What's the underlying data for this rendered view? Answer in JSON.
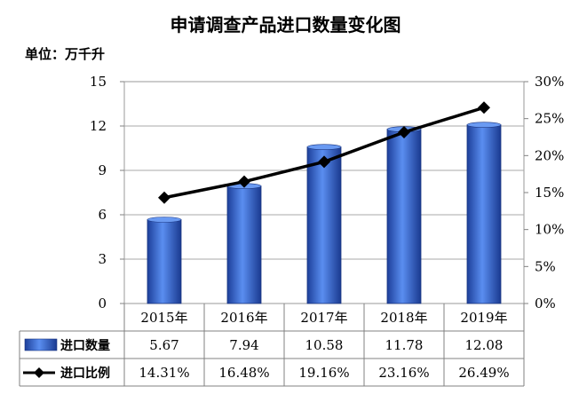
{
  "chart_data": {
    "type": "bar",
    "title": "申请调查产品进口数量变化图",
    "unit_label": "单位：万千升",
    "categories": [
      "2015年",
      "2016年",
      "2017年",
      "2018年",
      "2019年"
    ],
    "series": [
      {
        "name": "进口数量",
        "type": "bar",
        "axis": "left",
        "color": "#2f5fc9",
        "values": [
          5.67,
          7.94,
          10.58,
          11.78,
          12.08
        ],
        "labels": [
          "5.67",
          "7.94",
          "10.58",
          "11.78",
          "12.08"
        ]
      },
      {
        "name": "进口比例",
        "type": "line",
        "axis": "right",
        "color": "#000000",
        "values": [
          14.31,
          16.48,
          19.16,
          23.16,
          26.49
        ],
        "labels": [
          "14.31%",
          "16.48%",
          "19.16%",
          "23.16%",
          "26.49%"
        ]
      }
    ],
    "y_left": {
      "min": 0,
      "max": 15,
      "ticks": [
        "0",
        "3",
        "6",
        "9",
        "12",
        "15"
      ]
    },
    "y_right": {
      "min": 0,
      "max": 30,
      "ticks": [
        "0%",
        "5%",
        "10%",
        "15%",
        "20%",
        "25%",
        "30%"
      ]
    },
    "grid": true,
    "legend": "data-table"
  }
}
